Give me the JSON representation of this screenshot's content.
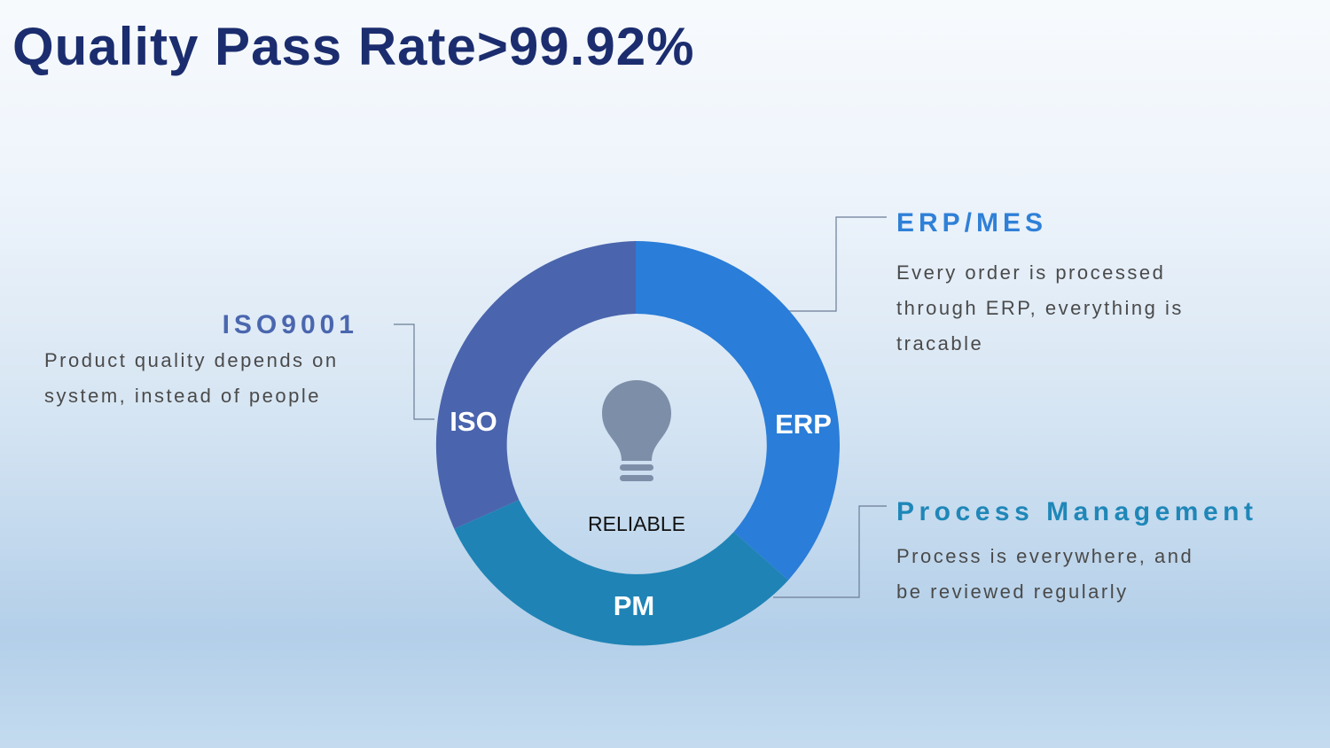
{
  "title": "Quality Pass Rate>99.92%",
  "center_label": "RELIABLE",
  "segments": [
    {
      "short": "ERP",
      "heading": "ERP/MES",
      "lines": [
        "Every order is processed",
        "through ERP, everything is",
        "tracable"
      ],
      "color": "#2a7dd8"
    },
    {
      "short": "PM",
      "heading": "Process Management",
      "lines": [
        "Process is everywhere, and",
        "be reviewed regularly"
      ],
      "color": "#1f83b5"
    },
    {
      "short": "ISO",
      "heading": "ISO9001",
      "lines": [
        "Product quality depends on",
        "system, instead of people"
      ],
      "color": "#4a65ad"
    }
  ],
  "colors": {
    "title": "#1b2d6e",
    "bulb": "#7d8ea8",
    "connector": "#6b7d96"
  },
  "icons": {
    "center": "lightbulb-icon"
  }
}
